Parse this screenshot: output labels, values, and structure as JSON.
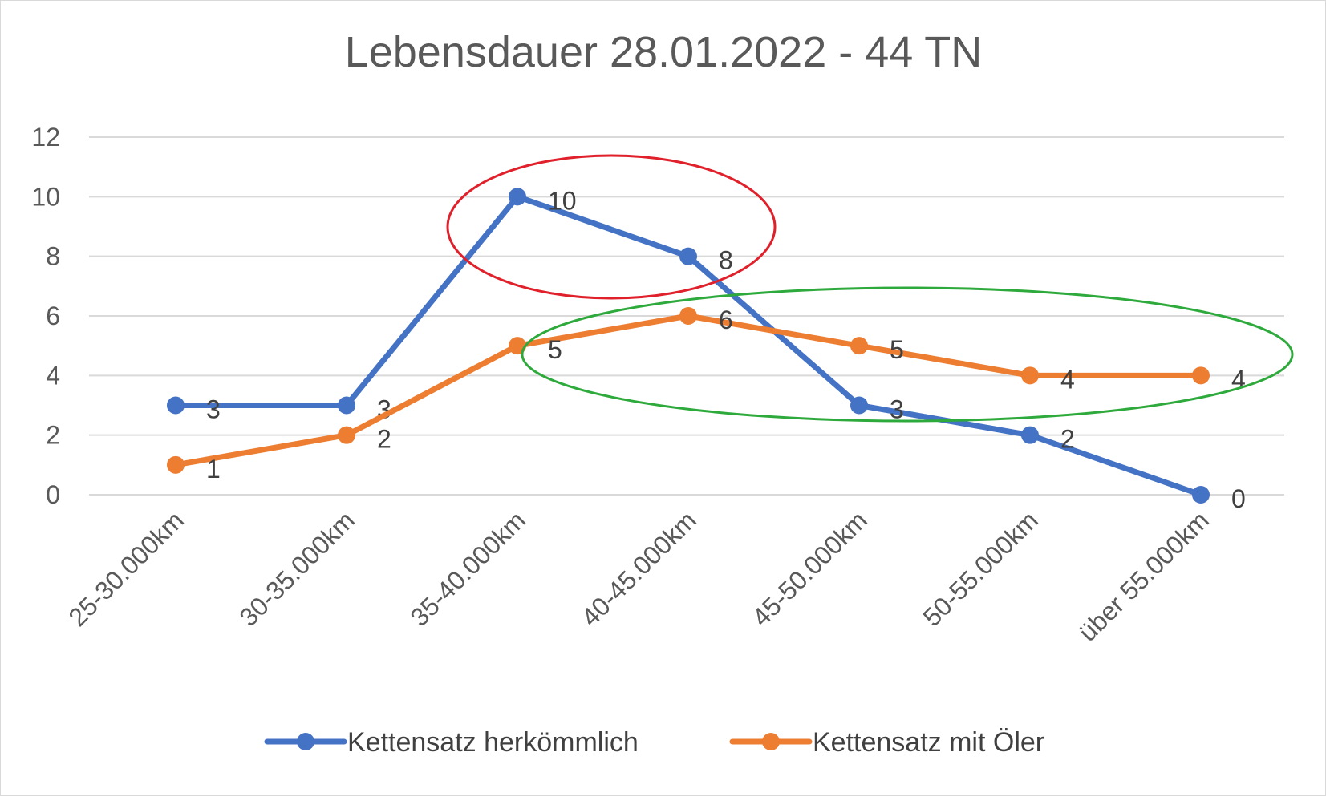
{
  "chart_data": {
    "type": "line",
    "title": "Lebensdauer 28.01.2022 - 44 TN",
    "categories": [
      "25-30.000km",
      "30-35.000km",
      "35-40.000km",
      "40-45.000km",
      "45-50.000km",
      "50-55.000km",
      "über 55.000km"
    ],
    "series": [
      {
        "name": "Kettensatz herkömmlich",
        "color": "#4472c4",
        "values": [
          3,
          3,
          10,
          8,
          3,
          2,
          0
        ]
      },
      {
        "name": "Kettensatz mit Öler",
        "color": "#ed7d31",
        "values": [
          1,
          2,
          5,
          6,
          5,
          4,
          4
        ]
      }
    ],
    "ylim": [
      0,
      12
    ],
    "yticks": [
      0,
      2,
      4,
      6,
      8,
      10,
      12
    ],
    "grid": true,
    "legend": "bottom",
    "data_labels": true,
    "annotations": [
      {
        "shape": "ellipse",
        "color": "#e0202a",
        "encloses": "Kettensatz herkömmlich at 35-40.000km and 40-45.000km"
      },
      {
        "shape": "ellipse",
        "color": "#2eaa3c",
        "encloses": "Kettensatz mit Öler from 35-40.000km to über 55.000km"
      }
    ]
  }
}
